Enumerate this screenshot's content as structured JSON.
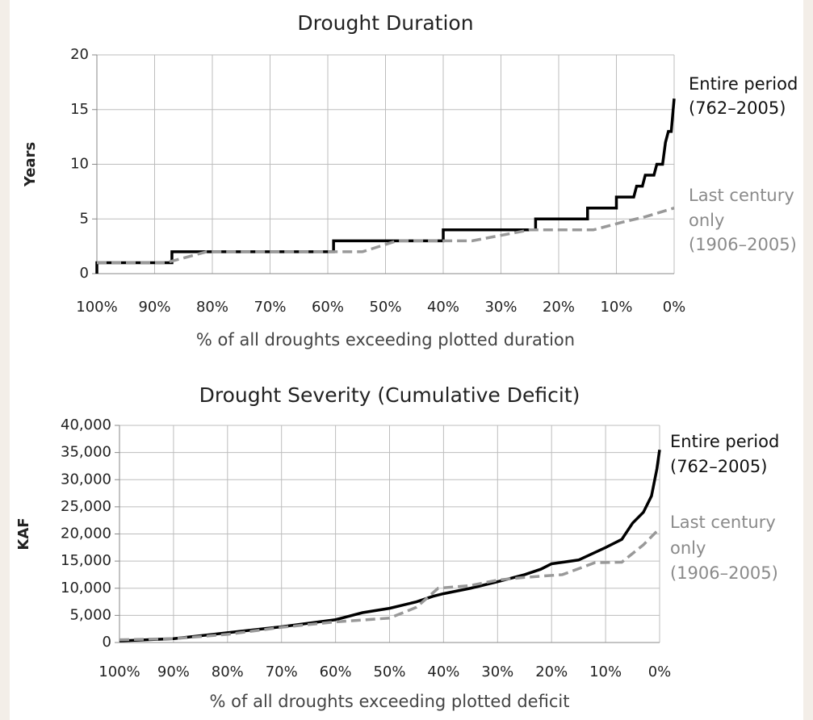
{
  "chart_data": [
    {
      "type": "line",
      "title": "Drought Duration",
      "xlabel": "% of all droughts exceeding plotted duration",
      "ylabel": "Years",
      "xlim": [
        100,
        0
      ],
      "ylim": [
        0,
        20
      ],
      "xticks": [
        {
          "value": 100,
          "label": "100%"
        },
        {
          "value": 90,
          "label": "90%"
        },
        {
          "value": 80,
          "label": "80%"
        },
        {
          "value": 70,
          "label": "70%"
        },
        {
          "value": 60,
          "label": "60%"
        },
        {
          "value": 50,
          "label": "50%"
        },
        {
          "value": 40,
          "label": "40%"
        },
        {
          "value": 30,
          "label": "30%"
        },
        {
          "value": 20,
          "label": "20%"
        },
        {
          "value": 10,
          "label": "10%"
        },
        {
          "value": 0,
          "label": "0%"
        }
      ],
      "yticks": [
        0,
        5,
        10,
        15,
        20
      ],
      "grid": true,
      "series": [
        {
          "name": [
            "Entire period",
            "(762–2005)"
          ],
          "color": "#000000",
          "dashed": false,
          "x": [
            100,
            100,
            87,
            87,
            59,
            59,
            40,
            40,
            24,
            24,
            15,
            15,
            10,
            10,
            7,
            6.5,
            5.5,
            5,
            3.5,
            3,
            2,
            1.5,
            1,
            0.5,
            0
          ],
          "values": [
            0,
            1,
            1,
            2,
            2,
            3,
            3,
            4,
            4,
            5,
            5,
            6,
            6,
            7,
            7,
            8,
            8,
            9,
            9,
            10,
            10,
            12,
            13,
            13,
            16
          ]
        },
        {
          "name": [
            "Last century",
            "only",
            "(1906–2005)"
          ],
          "color": "#999999",
          "dashed": true,
          "x": [
            100,
            88,
            81,
            54,
            48,
            35,
            25,
            14,
            9,
            5,
            0
          ],
          "values": [
            1,
            1,
            2,
            2,
            3,
            3,
            4,
            4,
            4.7,
            5.2,
            6
          ]
        }
      ]
    },
    {
      "type": "line",
      "title": "Drought Severity (Cumulative Deficit)",
      "xlabel": "% of all droughts exceeding plotted deficit",
      "ylabel": "KAF",
      "xlim": [
        100,
        0
      ],
      "ylim": [
        0,
        40000
      ],
      "xticks": [
        {
          "value": 100,
          "label": "100%"
        },
        {
          "value": 90,
          "label": "90%"
        },
        {
          "value": 80,
          "label": "80%"
        },
        {
          "value": 70,
          "label": "70%"
        },
        {
          "value": 60,
          "label": "60%"
        },
        {
          "value": 50,
          "label": "50%"
        },
        {
          "value": 40,
          "label": "40%"
        },
        {
          "value": 30,
          "label": "30%"
        },
        {
          "value": 20,
          "label": "20%"
        },
        {
          "value": 10,
          "label": "10%"
        },
        {
          "value": 0,
          "label": "0%"
        }
      ],
      "yticks": [
        0,
        {
          "value": 5000,
          "label": "5,000"
        },
        {
          "value": 10000,
          "label": "10,000"
        },
        {
          "value": 15000,
          "label": "15,000"
        },
        {
          "value": 20000,
          "label": "20,000"
        },
        {
          "value": 25000,
          "label": "25,000"
        },
        {
          "value": 30000,
          "label": "30,000"
        },
        {
          "value": 35000,
          "label": "35,000"
        },
        {
          "value": 40000,
          "label": "40,000"
        }
      ],
      "grid": true,
      "series": [
        {
          "name": [
            "Entire period",
            "(762–2005)"
          ],
          "color": "#000000",
          "dashed": false,
          "x": [
            100,
            90,
            80,
            70,
            60,
            55,
            50,
            45,
            42,
            40,
            35,
            30,
            25,
            22,
            20,
            15,
            10,
            7,
            5,
            3,
            1.5,
            0.5,
            0
          ],
          "values": [
            300,
            700,
            1800,
            2900,
            4200,
            5500,
            6300,
            7500,
            8500,
            9000,
            10000,
            11200,
            12500,
            13500,
            14500,
            15200,
            17500,
            19000,
            22000,
            24000,
            27000,
            32000,
            35500
          ]
        },
        {
          "name": [
            "Last century",
            "only",
            "(1906–2005)"
          ],
          "color": "#999999",
          "dashed": true,
          "x": [
            100,
            90,
            80,
            70,
            60,
            50,
            45,
            41,
            35,
            30,
            25,
            18,
            12,
            7,
            3,
            0
          ],
          "values": [
            500,
            700,
            1500,
            2800,
            3800,
            4500,
            6500,
            10000,
            10500,
            11500,
            12000,
            12500,
            14700,
            14800,
            18000,
            21000
          ]
        }
      ]
    }
  ]
}
